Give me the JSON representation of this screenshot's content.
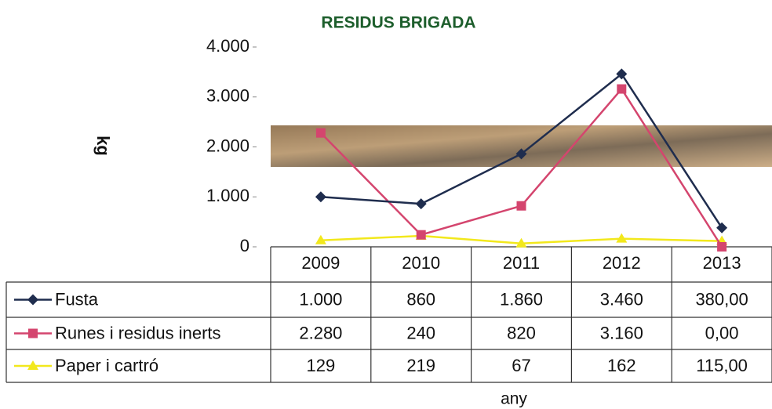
{
  "chart_data": {
    "type": "line",
    "title": "RESIDUS BRIGADA",
    "y_label": "kg",
    "x_label": "any",
    "categories": [
      "2009",
      "2010",
      "2011",
      "2012",
      "2013"
    ],
    "series": [
      {
        "name": "Fusta",
        "color": "#1f2d4e",
        "marker": "diamond",
        "values": [
          1000,
          860,
          1860,
          3460,
          380
        ],
        "value_labels": [
          "1.000",
          "860",
          "1.860",
          "3.460",
          "380,00"
        ]
      },
      {
        "name": "Runes i residus inerts",
        "color": "#d4456e",
        "marker": "square",
        "values": [
          2280,
          240,
          820,
          3160,
          0
        ],
        "value_labels": [
          "2.280",
          "240",
          "820",
          "3.160",
          "0,00"
        ]
      },
      {
        "name": "Paper i cartró",
        "color": "#f2e81c",
        "marker": "triangle",
        "values": [
          129,
          219,
          67,
          162,
          115
        ],
        "value_labels": [
          "129",
          "219",
          "67",
          "162",
          "115,00"
        ]
      }
    ],
    "ylim": [
      0,
      4000
    ],
    "yticks": [
      0,
      {
        "value": 1000,
        "label": "1.000"
      },
      {
        "value": 2000,
        "label": "2.000"
      },
      {
        "value": 3000,
        "label": "3.000"
      },
      {
        "value": 4000,
        "label": "4.000"
      }
    ],
    "grid": false
  }
}
